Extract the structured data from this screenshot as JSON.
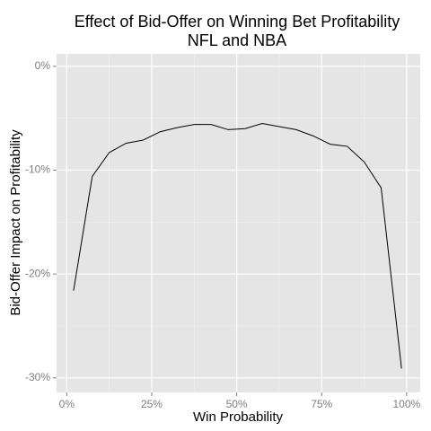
{
  "chart_data": {
    "type": "line",
    "title": [
      "Effect of Bid-Offer on Winning Bet Profitability",
      "NFL and NBA"
    ],
    "x_label": "Win Probability",
    "y_label": "Bid-Offer Impact on Profitability",
    "x": [
      2,
      7.5,
      12.5,
      17.5,
      22.5,
      27.5,
      32.5,
      37.5,
      42.5,
      47.5,
      52.5,
      57.5,
      62.5,
      67.5,
      72.5,
      77.5,
      82.5,
      87.5,
      92.5,
      98.5
    ],
    "values": [
      -21.6,
      -10.6,
      -8.3,
      -7.4,
      -7.1,
      -6.3,
      -5.9,
      -5.6,
      -5.6,
      -6.1,
      -6.0,
      -5.5,
      -5.8,
      -6.1,
      -6.7,
      -7.5,
      -7.7,
      -9.2,
      -11.7,
      -29.1
    ],
    "color": "#000000",
    "xlim": [
      -3,
      104
    ],
    "ylim": [
      -31.4,
      1.2
    ],
    "xticks": [
      {
        "value": 0,
        "label": "0%"
      },
      {
        "value": 25,
        "label": "25%"
      },
      {
        "value": 50,
        "label": "50%"
      },
      {
        "value": 75,
        "label": "75%"
      },
      {
        "value": 100,
        "label": "100%"
      }
    ],
    "yticks": [
      {
        "value": -30,
        "label": "-30%"
      },
      {
        "value": -20,
        "label": "-20%"
      },
      {
        "value": -10,
        "label": "-10%"
      },
      {
        "value": 0,
        "label": "0%"
      }
    ],
    "grid": true
  }
}
